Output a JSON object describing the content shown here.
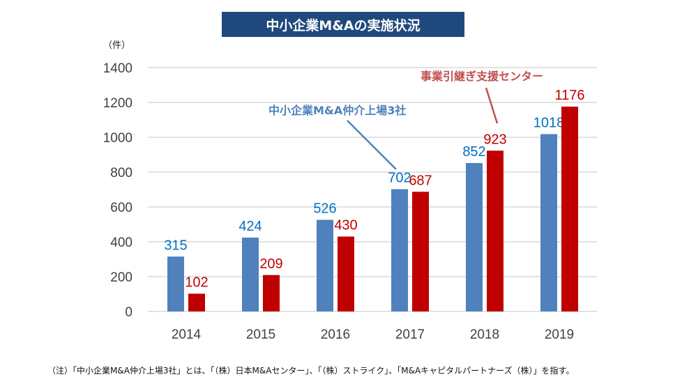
{
  "title": "中小企業M&Aの実施状況",
  "unit": "（件）",
  "note": "（注）「中小企業M&A仲介上場3社」とは、「（株）日本M&Aセンター」、「（株）ストライク」、「M&Aキャピタルパートナーズ（株）」を指す。",
  "chart_data": {
    "type": "bar",
    "title": "中小企業M&Aの実施状況",
    "ylabel": "（件）",
    "categories": [
      "2014",
      "2015",
      "2016",
      "2017",
      "2018",
      "2019"
    ],
    "ylim": [
      0,
      1400
    ],
    "yticks": [
      0,
      200,
      400,
      600,
      800,
      1000,
      1200,
      1400
    ],
    "grid": true,
    "series": [
      {
        "name": "中小企業M&A仲介上場3社",
        "values": [
          315,
          424,
          526,
          702,
          852,
          1018
        ],
        "color": "#4f81bd",
        "label_color": "#0070c0"
      },
      {
        "name": "事業引継ぎ支援センター",
        "values": [
          102,
          209,
          430,
          687,
          923,
          1176
        ],
        "color": "#c00000",
        "label_color": "#c00000"
      }
    ],
    "callout_colors": [
      "#4f81bd",
      "#c0504d"
    ]
  }
}
